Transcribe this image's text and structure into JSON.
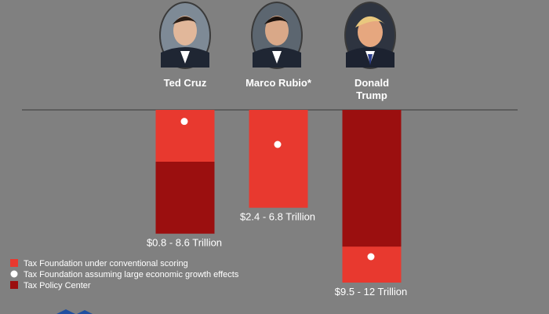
{
  "chart_data": {
    "type": "bar",
    "title": "",
    "xlabel": "",
    "ylabel": "",
    "ylim": [
      0,
      12
    ],
    "units": "Trillion",
    "candidates": [
      {
        "name_lines": [
          "Ted Cruz"
        ],
        "tax_foundation_conventional": 3.6,
        "tax_foundation_growth": 0.8,
        "tax_policy_center": 8.6,
        "range_label": "$0.8 - 8.6 Trillion",
        "range_label_anchor": "tax_policy_center"
      },
      {
        "name_lines": [
          "Marco Rubio*"
        ],
        "tax_foundation_conventional": 6.8,
        "tax_foundation_growth": 2.4,
        "tax_policy_center": 6.8,
        "range_label": "$2.4 - 6.8 Trillion",
        "range_label_anchor": "tax_foundation_conventional"
      },
      {
        "name_lines": [
          "Donald",
          "Trump"
        ],
        "tax_foundation_conventional": 12,
        "tax_foundation_growth": 10.2,
        "tax_policy_center": 9.5,
        "range_label": "$9.5 - 12 Trillion",
        "range_label_anchor": "tax_foundation_conventional"
      }
    ],
    "legend": [
      {
        "label": "Tax Foundation under conventional scoring",
        "marker": "square",
        "color": "#e8392f"
      },
      {
        "label": "Tax Foundation assuming large economic growth effects",
        "marker": "circle",
        "color": "#ffffff"
      },
      {
        "label": "Tax Policy Center",
        "marker": "square",
        "color": "#9b0f0f"
      }
    ]
  },
  "colors": {
    "background": "#808080",
    "conventional": "#e8392f",
    "policy_center": "#9b0f0f",
    "growth_dot": "#ffffff",
    "axis_line": "#3a3a3a",
    "text": "#ffffff"
  }
}
